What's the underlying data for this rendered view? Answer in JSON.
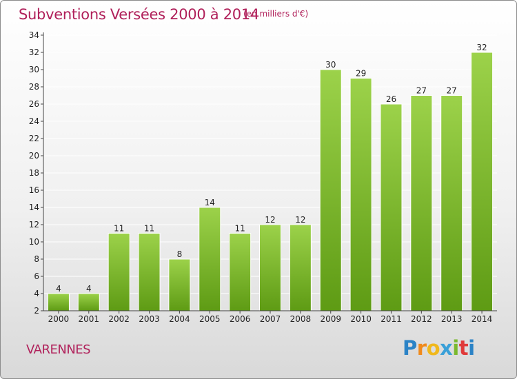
{
  "header": {
    "title": "Subventions Versées 2000 à 2014",
    "subtitle": "(en milliers d'€)"
  },
  "footer": {
    "commune": "VARENNES",
    "logo_letters": [
      "P",
      "r",
      "o",
      "x",
      "i",
      "t",
      "i"
    ],
    "logo_colors": [
      "#2b83c6",
      "#f08a1c",
      "#f0b81c",
      "#3aa0d8",
      "#7ab92e",
      "#e03a3a",
      "#2b83c6"
    ]
  },
  "colors": {
    "bar_light": "#9cd24a",
    "bar_dark": "#5e9b14",
    "axis": "#444444",
    "grid": "#ffffff"
  },
  "chart_data": {
    "type": "bar",
    "title": "Subventions Versées 2000 à 2014",
    "subtitle": "(en milliers d'€)",
    "xlabel": "",
    "ylabel": "",
    "categories": [
      "2000",
      "2001",
      "2002",
      "2003",
      "2004",
      "2005",
      "2006",
      "2007",
      "2008",
      "2009",
      "2010",
      "2011",
      "2012",
      "2013",
      "2014"
    ],
    "values": [
      4,
      4,
      11,
      11,
      8,
      14,
      11,
      12,
      12,
      30,
      29,
      26,
      27,
      27,
      32
    ],
    "ylim": [
      2,
      34
    ],
    "yticks": [
      2,
      4,
      6,
      8,
      10,
      12,
      14,
      16,
      18,
      20,
      22,
      24,
      26,
      28,
      30,
      32,
      34
    ],
    "grid": true,
    "legend": "none"
  }
}
